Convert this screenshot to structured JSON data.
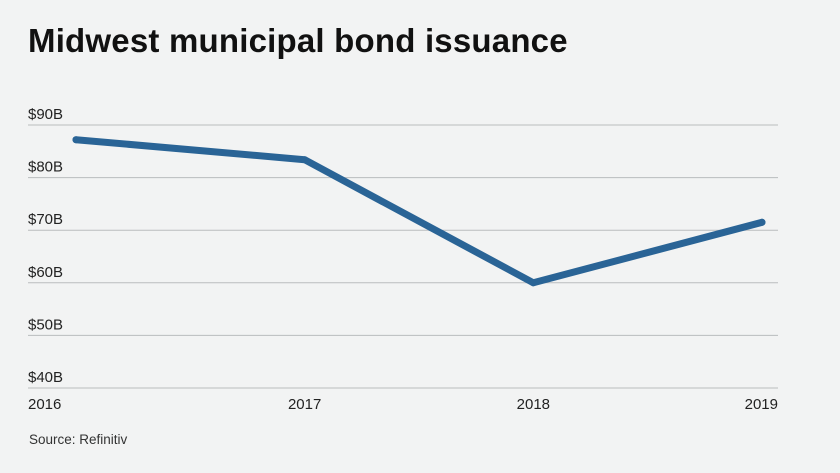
{
  "colors": {
    "background": "#f2f3f3",
    "line": "#2a6496",
    "grid": "#b9bcbe",
    "text": "#222222"
  },
  "chart_data": {
    "type": "line",
    "title": "Midwest municipal bond issuance",
    "source": "Source: Refinitiv",
    "xlabel": "",
    "ylabel": "",
    "x": [
      "2016",
      "2017",
      "2018",
      "2019"
    ],
    "series": [
      {
        "values": [
          87.2,
          83.4,
          60.0,
          71.5
        ]
      }
    ],
    "ylim": [
      40,
      90
    ],
    "yticks": [
      40,
      50,
      60,
      70,
      80,
      90
    ],
    "ytick_labels": [
      "$40B",
      "$50B",
      "$60B",
      "$70B",
      "$80B",
      "$90B"
    ],
    "grid": true,
    "legend": "none"
  }
}
